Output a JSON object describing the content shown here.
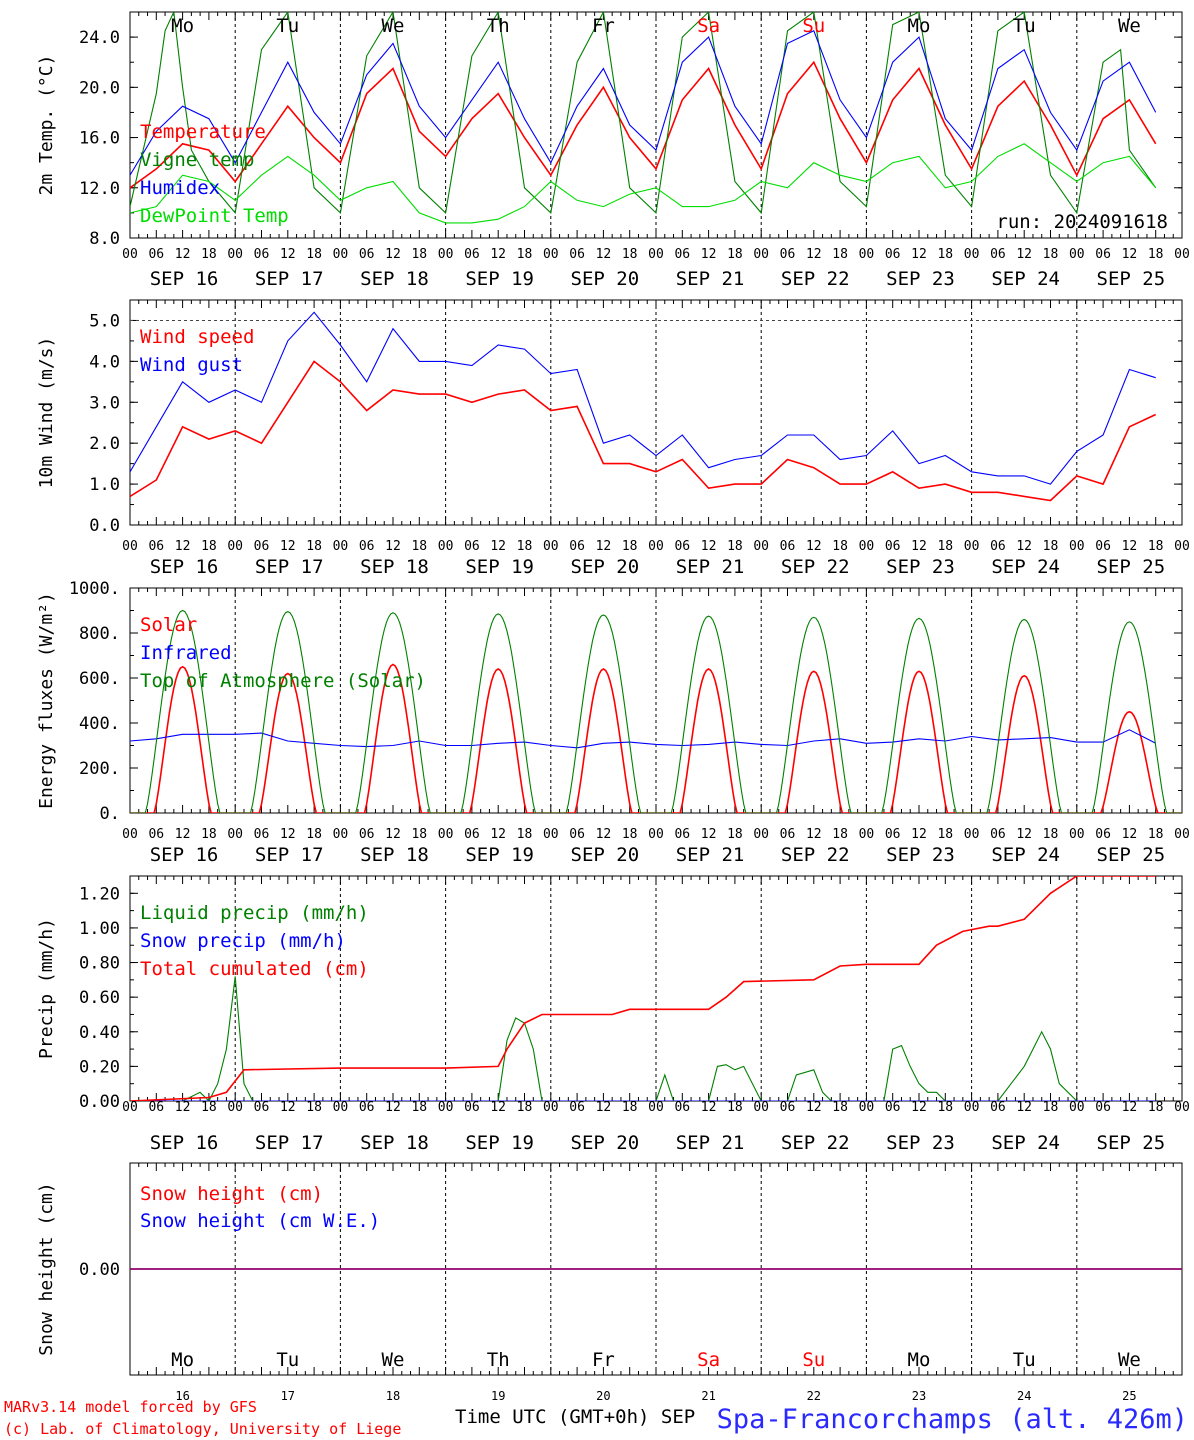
{
  "meta": {
    "run": "run: 2024091618",
    "credit_line1": "MARv3.14 model forced by GFS",
    "credit_line2": "(c) Lab. of Climatology, University of Liege",
    "xaxis_title": "Time UTC (GMT+0h) SEP",
    "station": "Spa-Francorchamps (alt. 426m)"
  },
  "axes": {
    "hour_ticks": [
      "00",
      "06",
      "12",
      "18"
    ],
    "end_tick": "00",
    "dates": [
      "SEP 16",
      "SEP 17",
      "SEP 18",
      "SEP 19",
      "SEP 20",
      "SEP 21",
      "SEP 22",
      "SEP 23",
      "SEP 24",
      "SEP 25"
    ],
    "weekdays": [
      "Mo",
      "Tu",
      "We",
      "Th",
      "Fr",
      "Sa",
      "Su",
      "Mo",
      "Tu",
      "We"
    ],
    "weekend_days": [
      5,
      6
    ],
    "day_numbers": [
      "16",
      "17",
      "18",
      "19",
      "20",
      "21",
      "22",
      "23",
      "24",
      "25"
    ],
    "colors": {
      "red": "#ff0000",
      "green": "#008000",
      "blue": "#0000ff",
      "lightgreen": "#00dd00",
      "purple": "#800080"
    }
  },
  "chart_data": [
    {
      "type": "line",
      "ylabel": "2m Temp. (°C)",
      "ylim": [
        8,
        26
      ],
      "yticks": [
        "8.0",
        "12.0",
        "16.0",
        "20.0",
        "24.0"
      ],
      "x_unit": "hours from 2024-09-16 00 UTC",
      "series": [
        {
          "name": "Temperature",
          "color": "#ff0000",
          "x": [
            0,
            6,
            12,
            18,
            24,
            30,
            36,
            42,
            48,
            54,
            60,
            66,
            72,
            78,
            84,
            90,
            96,
            102,
            108,
            114,
            120,
            126,
            132,
            138,
            144,
            150,
            156,
            162,
            168,
            174,
            180,
            186,
            192,
            198,
            204,
            210,
            216,
            222,
            228,
            234
          ],
          "y": [
            12.0,
            13.5,
            15.5,
            15.0,
            12.5,
            15.5,
            18.5,
            16.0,
            14.0,
            19.5,
            21.5,
            16.5,
            14.5,
            17.5,
            19.5,
            16.0,
            13.0,
            17.0,
            20.0,
            16.0,
            13.5,
            19.0,
            21.5,
            17.0,
            13.5,
            19.5,
            22.0,
            17.5,
            14.0,
            19.0,
            21.5,
            17.0,
            13.5,
            18.5,
            20.5,
            17.0,
            13.0,
            17.5,
            19.0,
            15.5
          ]
        },
        {
          "name": "Vigne temp",
          "color": "#008000",
          "x": [
            0,
            6,
            8,
            10,
            12,
            14,
            18,
            24,
            30,
            36,
            42,
            48,
            54,
            60,
            66,
            72,
            78,
            84,
            90,
            96,
            102,
            108,
            114,
            120,
            126,
            132,
            138,
            144,
            150,
            156,
            162,
            168,
            174,
            180,
            186,
            192,
            198,
            204,
            210,
            216,
            222,
            226,
            228,
            234
          ],
          "y": [
            10.5,
            19.5,
            24.5,
            26,
            20.0,
            15.0,
            12.5,
            10.0,
            23.0,
            26,
            12.0,
            10.0,
            22.5,
            26,
            12.0,
            10.0,
            22.5,
            26,
            12.0,
            10.0,
            22.0,
            26,
            12.0,
            10.0,
            24.0,
            26,
            12.5,
            10.0,
            24.5,
            26,
            12.5,
            10.5,
            25.0,
            26,
            13.0,
            10.5,
            24.5,
            26,
            13.0,
            10.0,
            22.0,
            23.0,
            15.0,
            12.0
          ]
        },
        {
          "name": "Humidex",
          "color": "#0000ff",
          "x": [
            0,
            6,
            12,
            18,
            24,
            30,
            36,
            42,
            48,
            54,
            60,
            66,
            72,
            78,
            84,
            90,
            96,
            102,
            108,
            114,
            120,
            126,
            132,
            138,
            144,
            150,
            156,
            162,
            168,
            174,
            180,
            186,
            192,
            198,
            204,
            210,
            216,
            222,
            228,
            234
          ],
          "y": [
            13.0,
            16.5,
            18.5,
            17.5,
            14.0,
            18.0,
            22.0,
            18.0,
            15.5,
            21.0,
            23.5,
            18.5,
            16.0,
            19.0,
            22.0,
            17.5,
            14.0,
            18.5,
            21.5,
            17.0,
            15.0,
            22.0,
            24.0,
            18.5,
            15.5,
            23.5,
            24.5,
            19.0,
            16.0,
            22.0,
            24.0,
            17.5,
            15.0,
            21.5,
            23.0,
            18.0,
            15.0,
            20.5,
            22.0,
            18.0
          ]
        },
        {
          "name": "DewPoint Temp",
          "color": "#00dd00",
          "x": [
            0,
            6,
            12,
            18,
            24,
            30,
            36,
            42,
            48,
            54,
            60,
            66,
            72,
            78,
            84,
            90,
            96,
            102,
            108,
            114,
            120,
            126,
            132,
            138,
            144,
            150,
            156,
            162,
            168,
            174,
            180,
            186,
            192,
            198,
            204,
            210,
            216,
            222,
            228,
            234
          ],
          "y": [
            10.0,
            10.5,
            13.0,
            12.5,
            11.0,
            13.0,
            14.5,
            13.0,
            11.0,
            12.0,
            12.5,
            10.0,
            9.2,
            9.2,
            9.5,
            10.5,
            12.5,
            11.0,
            10.5,
            11.5,
            12.0,
            10.5,
            10.5,
            11.0,
            12.5,
            12.0,
            14.0,
            13.0,
            12.5,
            14.0,
            14.5,
            12.0,
            12.5,
            14.5,
            15.5,
            14.0,
            12.5,
            14.0,
            14.5,
            12.0
          ]
        }
      ]
    },
    {
      "type": "line",
      "ylabel": "10m Wind (m/s)",
      "ylim": [
        0,
        5.5
      ],
      "yticks": [
        "0.0",
        "1.0",
        "2.0",
        "3.0",
        "4.0",
        "5.0"
      ],
      "x_unit": "hours from 2024-09-16 00 UTC",
      "series": [
        {
          "name": "Wind speed",
          "color": "#ff0000",
          "x": [
            0,
            6,
            12,
            18,
            24,
            30,
            36,
            42,
            48,
            54,
            60,
            66,
            72,
            78,
            84,
            90,
            96,
            102,
            108,
            114,
            120,
            126,
            132,
            138,
            144,
            150,
            156,
            162,
            168,
            174,
            180,
            186,
            192,
            198,
            204,
            210,
            216,
            222,
            228,
            234
          ],
          "y": [
            0.7,
            1.1,
            2.4,
            2.1,
            2.3,
            2.0,
            3.0,
            4.0,
            3.5,
            2.8,
            3.3,
            3.2,
            3.2,
            3.0,
            3.2,
            3.3,
            2.8,
            2.9,
            1.5,
            1.5,
            1.3,
            1.6,
            0.9,
            1.0,
            1.0,
            1.6,
            1.4,
            1.0,
            1.0,
            1.3,
            0.9,
            1.0,
            0.8,
            0.8,
            0.7,
            0.6,
            1.2,
            1.0,
            2.4,
            2.7
          ]
        },
        {
          "name": "Wind gust",
          "color": "#0000ff",
          "x": [
            0,
            6,
            12,
            18,
            24,
            30,
            36,
            42,
            48,
            54,
            60,
            66,
            72,
            78,
            84,
            90,
            96,
            102,
            108,
            114,
            120,
            126,
            132,
            138,
            144,
            150,
            156,
            162,
            168,
            174,
            180,
            186,
            192,
            198,
            204,
            210,
            216,
            222,
            228,
            234
          ],
          "y": [
            1.3,
            2.4,
            3.5,
            3.0,
            3.3,
            3.0,
            4.5,
            5.2,
            4.4,
            3.5,
            4.8,
            4.0,
            4.0,
            3.9,
            4.4,
            4.3,
            3.7,
            3.8,
            2.0,
            2.2,
            1.7,
            2.2,
            1.4,
            1.6,
            1.7,
            2.2,
            2.2,
            1.6,
            1.7,
            2.3,
            1.5,
            1.7,
            1.3,
            1.2,
            1.2,
            1.0,
            1.8,
            2.2,
            3.8,
            3.6
          ]
        }
      ]
    },
    {
      "type": "line",
      "ylabel": "Energy fluxes (W/m²)",
      "ylim": [
        0,
        1000
      ],
      "yticks": [
        "0.",
        "200.",
        "400.",
        "600.",
        "800.",
        "1000."
      ],
      "x_unit": "hours from 2024-09-16 00 UTC",
      "diurnal_series": {
        "Solar": {
          "sunrise_h": 5.5,
          "sunset_h": 18.5,
          "daily_peak": [
            650,
            620,
            660,
            640,
            640,
            640,
            630,
            630,
            610,
            450
          ]
        },
        "Top of Atmosphere (Solar)": {
          "sunrise_h": 3.5,
          "sunset_h": 20.5,
          "daily_peak": [
            900,
            895,
            890,
            885,
            880,
            875,
            870,
            865,
            860,
            850
          ]
        }
      },
      "series": [
        {
          "name": "Solar",
          "color": "#ff0000"
        },
        {
          "name": "Infrared",
          "color": "#0000ff",
          "x": [
            0,
            6,
            12,
            18,
            24,
            30,
            36,
            42,
            48,
            54,
            60,
            66,
            72,
            78,
            84,
            90,
            96,
            102,
            108,
            114,
            120,
            126,
            132,
            138,
            144,
            150,
            156,
            162,
            168,
            174,
            180,
            186,
            192,
            198,
            204,
            210,
            216,
            222,
            228,
            234
          ],
          "y": [
            320,
            330,
            350,
            350,
            350,
            355,
            320,
            310,
            300,
            295,
            300,
            320,
            300,
            300,
            310,
            315,
            300,
            290,
            310,
            315,
            305,
            300,
            305,
            315,
            305,
            300,
            320,
            330,
            310,
            315,
            330,
            320,
            340,
            325,
            330,
            335,
            315,
            315,
            370,
            310
          ]
        },
        {
          "name": "Top of Atmosphere (Solar)",
          "color": "#008000"
        }
      ]
    },
    {
      "type": "line",
      "ylabel": "Precip (mm/h)",
      "ylim": [
        0,
        1.3
      ],
      "yticks": [
        "0.00",
        "0.20",
        "0.40",
        "0.60",
        "0.80",
        "1.00",
        "1.20"
      ],
      "x_unit": "hours from 2024-09-16 00 UTC",
      "series": [
        {
          "name": "Liquid precip (mm/h)",
          "color": "#008000",
          "x": [
            0,
            12,
            16,
            18,
            20,
            22,
            24,
            26,
            28,
            48,
            84,
            86,
            88,
            90,
            92,
            94,
            96,
            120,
            122,
            124,
            132,
            134,
            136,
            138,
            140,
            144,
            150,
            152,
            156,
            158,
            160,
            172,
            174,
            176,
            178,
            180,
            182,
            184,
            186,
            198,
            204,
            206,
            208,
            210,
            212,
            216,
            234
          ],
          "y": [
            0,
            0,
            0.05,
            0.0,
            0.1,
            0.3,
            0.72,
            0.1,
            0,
            0,
            0,
            0.35,
            0.48,
            0.45,
            0.3,
            0,
            0,
            0,
            0.15,
            0,
            0,
            0.2,
            0.21,
            0.18,
            0.2,
            0,
            0,
            0.15,
            0.18,
            0.05,
            0,
            0,
            0.3,
            0.32,
            0.2,
            0.1,
            0.05,
            0.05,
            0,
            0,
            0.2,
            0.3,
            0.4,
            0.3,
            0.1,
            0,
            0
          ]
        },
        {
          "name": "Snow precip (mm/h)",
          "color": "#0000ff",
          "x": [
            0,
            234
          ],
          "y": [
            0,
            0
          ]
        },
        {
          "name": "Total cumulated (cm)",
          "color": "#ff0000",
          "x": [
            0,
            18,
            22,
            26,
            48,
            72,
            84,
            86,
            90,
            94,
            96,
            110,
            114,
            132,
            136,
            140,
            156,
            162,
            168,
            180,
            184,
            190,
            196,
            198,
            204,
            210,
            216,
            234
          ],
          "y": [
            0,
            0.02,
            0.05,
            0.18,
            0.19,
            0.19,
            0.2,
            0.3,
            0.45,
            0.5,
            0.5,
            0.5,
            0.53,
            0.53,
            0.6,
            0.69,
            0.7,
            0.78,
            0.79,
            0.79,
            0.9,
            0.98,
            1.01,
            1.01,
            1.05,
            1.2,
            1.3,
            1.3
          ]
        }
      ]
    },
    {
      "type": "line",
      "ylabel": "Snow height (cm)",
      "ylim": [
        -1,
        1
      ],
      "yticks": [
        "0.00"
      ],
      "x_unit": "hours from 2024-09-16 00 UTC",
      "series": [
        {
          "name": "Snow height (cm)",
          "color": "#ff0000",
          "x": [
            0,
            240
          ],
          "y": [
            0,
            0
          ]
        },
        {
          "name": "Snow height (cm W.E.)",
          "color": "#0000ff",
          "x": [
            0,
            240
          ],
          "y": [
            0,
            0
          ]
        }
      ]
    }
  ]
}
